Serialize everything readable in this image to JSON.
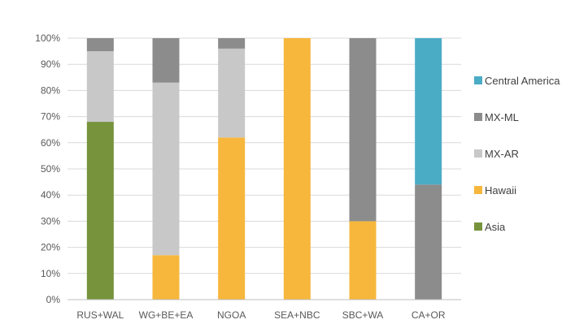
{
  "chart_data": {
    "type": "bar",
    "stacked": true,
    "categories": [
      "RUS+WAL",
      "WG+BE+EA",
      "NGOA",
      "SEA+NBC",
      "SBC+WA",
      "CA+OR"
    ],
    "ylim": [
      0,
      100
    ],
    "y_ticks": [
      "0%",
      "10%",
      "20%",
      "30%",
      "40%",
      "50%",
      "60%",
      "70%",
      "80%",
      "90%",
      "100%"
    ],
    "grid": true,
    "legend_position": "right",
    "series": [
      {
        "name": "Asia",
        "color": "#77933C",
        "values": [
          68,
          0,
          0,
          0,
          0,
          0
        ]
      },
      {
        "name": "Hawaii",
        "color": "#F6B73C",
        "values": [
          0,
          17,
          62,
          100,
          30,
          0
        ]
      },
      {
        "name": "MX-AR",
        "color": "#C8C8C8",
        "values": [
          27,
          66,
          34,
          0,
          0,
          0
        ]
      },
      {
        "name": "MX-ML",
        "color": "#8C8C8C",
        "values": [
          5,
          17,
          4,
          0,
          70,
          44
        ]
      },
      {
        "name": "Central America",
        "color": "#4BACC6",
        "values": [
          0,
          0,
          0,
          0,
          0,
          56
        ]
      }
    ],
    "legend_order": [
      "Central America",
      "MX-ML",
      "MX-AR",
      "Hawaii",
      "Asia"
    ]
  }
}
